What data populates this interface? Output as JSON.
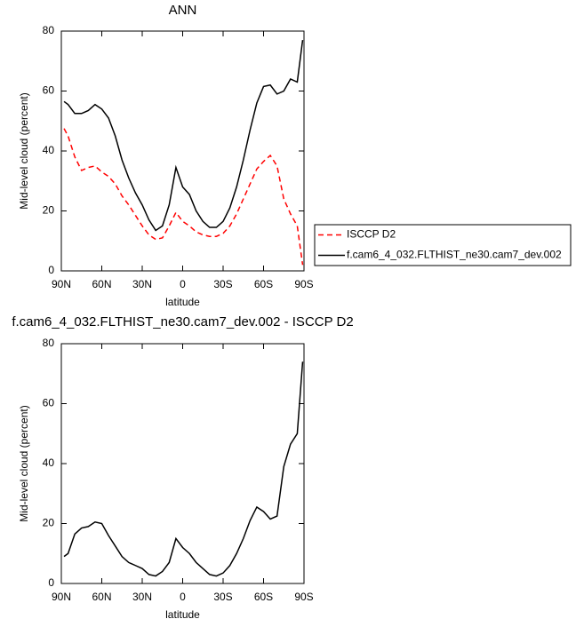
{
  "chart_data": [
    {
      "type": "line",
      "title": "ANN",
      "xlabel": "latitude",
      "ylabel": "Mid-level cloud (percent)",
      "x": [
        88,
        85,
        80,
        75,
        70,
        65,
        60,
        55,
        50,
        45,
        40,
        35,
        30,
        25,
        20,
        15,
        10,
        5,
        0,
        -5,
        -10,
        -15,
        -20,
        -25,
        -30,
        -35,
        -40,
        -45,
        -50,
        -55,
        -60,
        -65,
        -70,
        -75,
        -80,
        -85,
        -89
      ],
      "xlim": [
        90,
        -90
      ],
      "xticks": [
        {
          "value": 90,
          "label": "90N"
        },
        {
          "value": 60,
          "label": "60N"
        },
        {
          "value": 30,
          "label": "30N"
        },
        0,
        {
          "value": -30,
          "label": "30S"
        },
        {
          "value": -60,
          "label": "60S"
        },
        {
          "value": -90,
          "label": "90S"
        }
      ],
      "ylim": [
        0,
        80
      ],
      "yticks": [
        0,
        20,
        40,
        60,
        80
      ],
      "legend": "right",
      "series": [
        {
          "name": "ISCCP D2",
          "color": "#ff0000",
          "dashed": true,
          "values": [
            47.5,
            45,
            38,
            33.5,
            34.5,
            35,
            33,
            31.5,
            29,
            25,
            22,
            18.5,
            15,
            12,
            10.5,
            11,
            15,
            19.5,
            16.5,
            15,
            13,
            12,
            11.5,
            11.5,
            12.5,
            15,
            19,
            24,
            29,
            34,
            36.5,
            38.5,
            35,
            24,
            19,
            15,
            2
          ]
        },
        {
          "name": "f.cam6_4_032.FLTHIST_ne30.cam7_dev.002",
          "color": "#000000",
          "dashed": false,
          "values": [
            56.5,
            55.5,
            52.5,
            52.5,
            53.5,
            55.5,
            54,
            51,
            45,
            37,
            31,
            26,
            22,
            17,
            13.5,
            15,
            22,
            34.5,
            28,
            25.5,
            20,
            16.5,
            14.5,
            14.5,
            16.5,
            21,
            28,
            37,
            47,
            56,
            61.5,
            62,
            59,
            60,
            64,
            63,
            77
          ]
        }
      ]
    },
    {
      "type": "line",
      "title": "f.cam6_4_032.FLTHIST_ne30.cam7_dev.002 - ISCCP D2",
      "xlabel": "latitude",
      "ylabel": "Mid-level cloud (percent)",
      "x": [
        88,
        85,
        80,
        75,
        70,
        65,
        60,
        55,
        50,
        45,
        40,
        35,
        30,
        25,
        20,
        15,
        10,
        5,
        0,
        -5,
        -10,
        -15,
        -20,
        -25,
        -30,
        -35,
        -40,
        -45,
        -50,
        -55,
        -60,
        -65,
        -70,
        -75,
        -80,
        -85,
        -89
      ],
      "xlim": [
        90,
        -90
      ],
      "xticks": [
        {
          "value": 90,
          "label": "90N"
        },
        {
          "value": 60,
          "label": "60N"
        },
        {
          "value": 30,
          "label": "30N"
        },
        0,
        {
          "value": -30,
          "label": "30S"
        },
        {
          "value": -60,
          "label": "60S"
        },
        {
          "value": -90,
          "label": "90S"
        }
      ],
      "ylim": [
        0,
        80
      ],
      "yticks": [
        0,
        20,
        40,
        60,
        80
      ],
      "series": [
        {
          "color": "#000000",
          "dashed": false,
          "values": [
            9,
            10,
            16.5,
            18.5,
            19,
            20.5,
            20,
            16,
            12.5,
            9,
            7,
            6,
            5,
            3,
            2.5,
            4,
            7,
            15,
            12,
            10,
            7,
            5,
            3,
            2.5,
            3.5,
            6,
            10,
            15,
            21,
            25.5,
            24,
            21.5,
            22.5,
            39,
            46.5,
            50,
            74
          ]
        }
      ]
    }
  ]
}
